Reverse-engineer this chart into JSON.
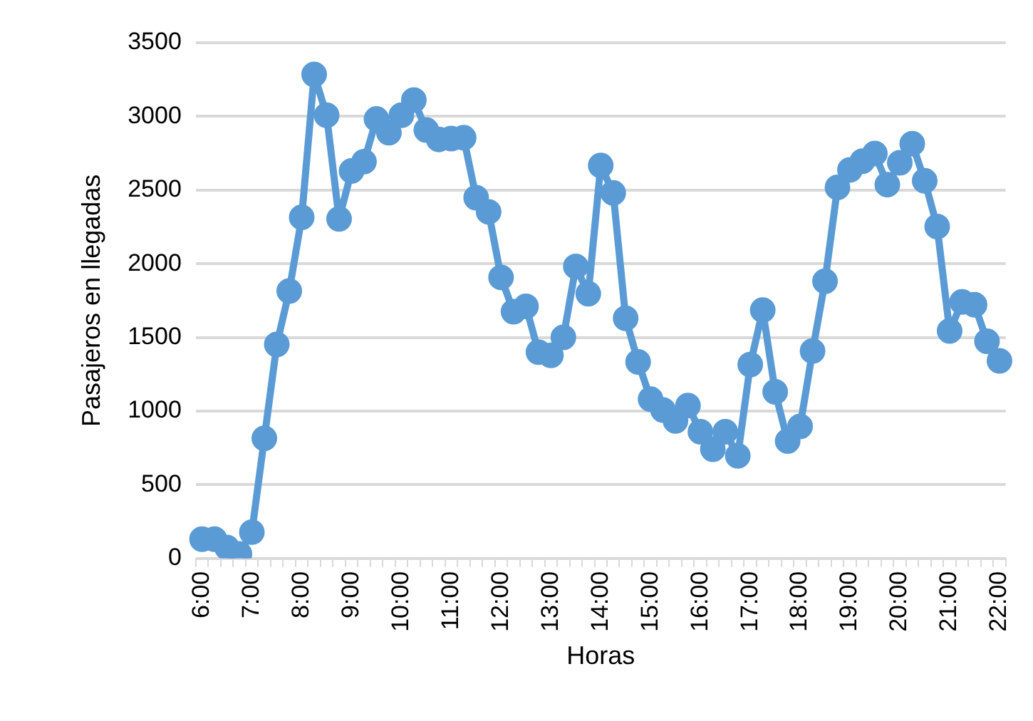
{
  "chart_data": {
    "type": "line",
    "xlabel": "Horas",
    "ylabel": "Pasajeros en llegadas",
    "categories": [
      "6:00",
      null,
      null,
      null,
      "7:00",
      null,
      null,
      null,
      "8:00",
      null,
      null,
      null,
      "9:00",
      null,
      null,
      null,
      "10:00",
      null,
      null,
      null,
      "11:00",
      null,
      null,
      null,
      "12:00",
      null,
      null,
      null,
      "13:00",
      null,
      null,
      null,
      "14:00",
      null,
      null,
      null,
      "15:00",
      null,
      null,
      null,
      "16:00",
      null,
      null,
      null,
      "17:00",
      null,
      null,
      null,
      "18:00",
      null,
      null,
      null,
      "19:00",
      null,
      null,
      null,
      "20:00",
      null,
      null,
      null,
      "21:00",
      null,
      null,
      null,
      "22:00"
    ],
    "series": [
      {
        "color": "#5b9bd5",
        "values": [
          130,
          130,
          74,
          30,
          178,
          815,
          1452,
          1815,
          2315,
          3285,
          3008,
          2304,
          2630,
          2693,
          2982,
          2889,
          3008,
          3111,
          2907,
          2844,
          2850,
          2855,
          2448,
          2352,
          1907,
          1674,
          1711,
          1400,
          1378,
          1500,
          1981,
          1796,
          2667,
          2481,
          1630,
          1333,
          1081,
          1007,
          933,
          1037,
          859,
          741,
          859,
          696,
          1315,
          1685,
          1130,
          796,
          896,
          1407,
          1881,
          2518,
          2637,
          2696,
          2748,
          2537,
          2685,
          2815,
          2563,
          2252,
          1544,
          1741,
          1722,
          1474,
          1341
        ]
      }
    ],
    "ylim": [
      0,
      3500
    ],
    "yticks": [
      0,
      500,
      1000,
      1500,
      2000,
      2500,
      3000,
      3500
    ],
    "grid": "y",
    "legend": false,
    "marker": "circle",
    "line_style": "solid"
  }
}
